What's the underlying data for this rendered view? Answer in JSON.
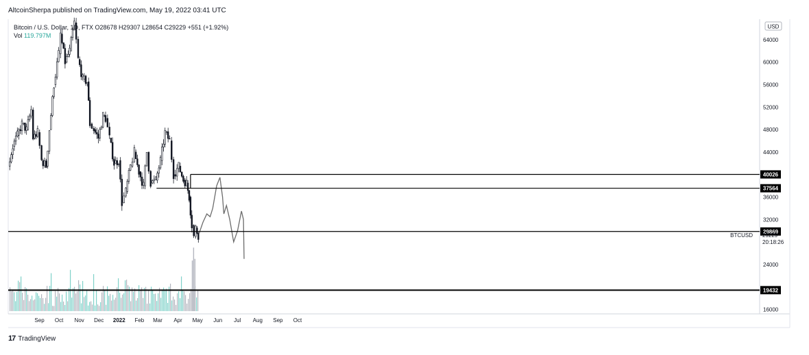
{
  "header": {
    "published": "AltcoinSherpa published on TradingView.com, May 19, 2022 03:41 UTC"
  },
  "legend": {
    "line1": "Bitcoin / U.S. Dollar, 1D, FTX  O28678  H29307  L28654  C29229  +551 (+1.92%)",
    "vol_label": "Vol",
    "vol_value": "119.797M"
  },
  "footer": {
    "logo": "17",
    "brand": "TradingView"
  },
  "colors": {
    "price": "#131722",
    "volume_up": "#7fd1c9",
    "volume_down": "#b2b5be",
    "projection": "#6b6b6b",
    "line": "#000000"
  },
  "chart_data": {
    "type": "candlestick",
    "symbol": "BTCUSD",
    "currency_badge": "USD",
    "y_ticks": [
      64000,
      60000,
      56000,
      52000,
      48000,
      44000,
      36000,
      32000,
      24000,
      16000
    ],
    "ylim": [
      14600,
      67000
    ],
    "x_labels": [
      "Sep",
      "Oct",
      "Nov",
      "Dec",
      "2022",
      "Feb",
      "Mar",
      "Apr",
      "May",
      "Jun",
      "Jul",
      "Aug",
      "Sep",
      "Oct"
    ],
    "price_series": [
      {
        "date": "2021-08-01",
        "close": 41500
      },
      {
        "date": "2021-08-08",
        "close": 45000
      },
      {
        "date": "2021-08-15",
        "close": 47000
      },
      {
        "date": "2021-08-22",
        "close": 49000
      },
      {
        "date": "2021-08-29",
        "close": 48000
      },
      {
        "date": "2021-09-05",
        "close": 51500
      },
      {
        "date": "2021-09-08",
        "close": 46500
      },
      {
        "date": "2021-09-15",
        "close": 47500
      },
      {
        "date": "2021-09-21",
        "close": 42500
      },
      {
        "date": "2021-09-28",
        "close": 41500
      },
      {
        "date": "2021-10-03",
        "close": 48000
      },
      {
        "date": "2021-10-10",
        "close": 56000
      },
      {
        "date": "2021-10-17",
        "close": 61500
      },
      {
        "date": "2021-10-20",
        "close": 65000
      },
      {
        "date": "2021-10-27",
        "close": 60000
      },
      {
        "date": "2021-11-03",
        "close": 62000
      },
      {
        "date": "2021-11-10",
        "close": 67000
      },
      {
        "date": "2021-11-16",
        "close": 60500
      },
      {
        "date": "2021-11-23",
        "close": 57000
      },
      {
        "date": "2021-11-30",
        "close": 56500
      },
      {
        "date": "2021-12-04",
        "close": 49000
      },
      {
        "date": "2021-12-10",
        "close": 48000
      },
      {
        "date": "2021-12-17",
        "close": 46500
      },
      {
        "date": "2021-12-24",
        "close": 50500
      },
      {
        "date": "2021-12-28",
        "close": 50000
      },
      {
        "date": "2022-01-03",
        "close": 46500
      },
      {
        "date": "2022-01-10",
        "close": 42000
      },
      {
        "date": "2022-01-17",
        "close": 42500
      },
      {
        "date": "2022-01-22",
        "close": 35000
      },
      {
        "date": "2022-01-28",
        "close": 37000
      },
      {
        "date": "2022-02-04",
        "close": 41500
      },
      {
        "date": "2022-02-10",
        "close": 44000
      },
      {
        "date": "2022-02-17",
        "close": 40500
      },
      {
        "date": "2022-02-24",
        "close": 38000
      },
      {
        "date": "2022-03-01",
        "close": 44000
      },
      {
        "date": "2022-03-07",
        "close": 38500
      },
      {
        "date": "2022-03-15",
        "close": 39000
      },
      {
        "date": "2022-03-22",
        "close": 42500
      },
      {
        "date": "2022-03-29",
        "close": 47500
      },
      {
        "date": "2022-04-05",
        "close": 46000
      },
      {
        "date": "2022-04-11",
        "close": 40000
      },
      {
        "date": "2022-04-19",
        "close": 41500
      },
      {
        "date": "2022-04-26",
        "close": 39000
      },
      {
        "date": "2022-05-01",
        "close": 38500
      },
      {
        "date": "2022-05-05",
        "close": 36000
      },
      {
        "date": "2022-05-09",
        "close": 31000
      },
      {
        "date": "2022-05-12",
        "close": 29000
      },
      {
        "date": "2022-05-15",
        "close": 30500
      },
      {
        "date": "2022-05-19",
        "close": 29229
      }
    ],
    "projection_path": [
      {
        "date": "2022-05-20",
        "price": 29500
      },
      {
        "date": "2022-05-26",
        "price": 31500
      },
      {
        "date": "2022-06-01",
        "price": 33000
      },
      {
        "date": "2022-06-06",
        "price": 32500
      },
      {
        "date": "2022-06-10",
        "price": 34000
      },
      {
        "date": "2022-06-16",
        "price": 38000
      },
      {
        "date": "2022-06-21",
        "price": 39500
      },
      {
        "date": "2022-06-25",
        "price": 36000
      },
      {
        "date": "2022-06-27",
        "price": 33000
      },
      {
        "date": "2022-07-01",
        "price": 34500
      },
      {
        "date": "2022-07-06",
        "price": 32000
      },
      {
        "date": "2022-07-12",
        "price": 28000
      },
      {
        "date": "2022-07-18",
        "price": 30000
      },
      {
        "date": "2022-07-24",
        "price": 33500
      },
      {
        "date": "2022-07-27",
        "price": 32000
      },
      {
        "date": "2022-07-28",
        "price": 25000
      }
    ],
    "horizontal_lines": [
      {
        "price": 40026,
        "label": "40026",
        "start_date": "2022-05-07"
      },
      {
        "price": 37564,
        "label": "37564",
        "start_date": "2022-03-16"
      },
      {
        "price": 29869,
        "label": "29869",
        "start_date": "2021-08-01"
      },
      {
        "price": 19432,
        "label": "19432",
        "start_date": "2021-08-01"
      }
    ],
    "last_price": {
      "symbol": "BTCUSD",
      "value": "29229",
      "countdown": "20:18:26"
    },
    "volume": {
      "spikes": [
        {
          "date": "2022-05-09",
          "level": 24700
        },
        {
          "date": "2022-05-11",
          "level": 27000
        },
        {
          "date": "2022-05-13",
          "level": 25000
        }
      ]
    }
  }
}
